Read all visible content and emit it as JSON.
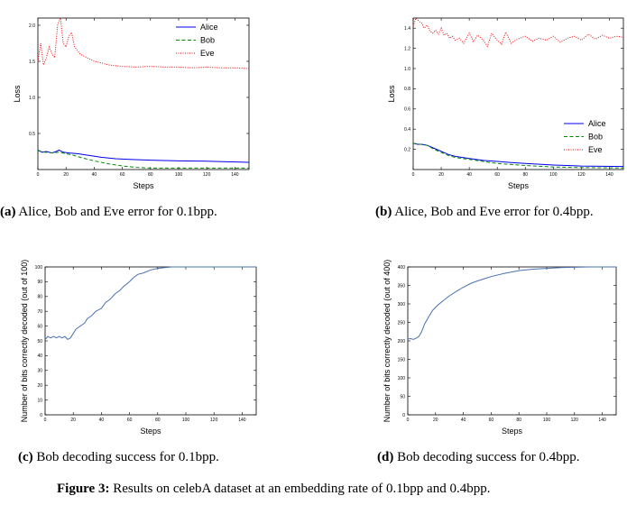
{
  "captions": {
    "a": {
      "tag": "(a)",
      "text": " Alice, Bob and Eve error for 0.1bpp."
    },
    "b": {
      "tag": "(b)",
      "text": " Alice, Bob and Eve error for 0.4bpp."
    },
    "c": {
      "tag": "(c)",
      "text": " Bob decoding success for 0.1bpp."
    },
    "d": {
      "tag": "(d)",
      "text": " Bob decoding success for 0.4bpp."
    },
    "figure": {
      "tag": "Figure 3:",
      "text": " Results on celebA dataset at an embedding rate of 0.1bpp and 0.4bpp."
    }
  },
  "chart_data": [
    {
      "id": "a",
      "type": "line",
      "xlabel": "Steps",
      "ylabel": "Loss",
      "xlim": [
        0,
        150
      ],
      "ylim": [
        0,
        2.1
      ],
      "xticks": [
        "0",
        "20",
        "40",
        "60",
        "80",
        "100",
        "120",
        "140"
      ],
      "yticks": [
        "0.5",
        "1.0",
        "1.5",
        "2.0"
      ],
      "legend_position": "top-right",
      "series": [
        {
          "name": "Alice",
          "color": "#0000ee",
          "style": "solid",
          "x": [
            0,
            3,
            6,
            10,
            13,
            15,
            18,
            22,
            28,
            35,
            45,
            55,
            65,
            80,
            100,
            120,
            150
          ],
          "y": [
            0.27,
            0.24,
            0.25,
            0.23,
            0.25,
            0.27,
            0.24,
            0.23,
            0.22,
            0.2,
            0.17,
            0.15,
            0.14,
            0.13,
            0.12,
            0.115,
            0.1
          ]
        },
        {
          "name": "Bob",
          "color": "#008800",
          "style": "dashed",
          "x": [
            0,
            5,
            10,
            15,
            20,
            25,
            30,
            40,
            50,
            60,
            70,
            80,
            100,
            150
          ],
          "y": [
            0.26,
            0.24,
            0.23,
            0.24,
            0.22,
            0.2,
            0.17,
            0.12,
            0.08,
            0.05,
            0.03,
            0.02,
            0.02,
            0.02
          ]
        },
        {
          "name": "Eve",
          "color": "#ee0000",
          "style": "dotted",
          "x": [
            0,
            2,
            4,
            6,
            8,
            10,
            12,
            14,
            16,
            18,
            20,
            22,
            24,
            26,
            28,
            30,
            35,
            40,
            45,
            50,
            55,
            60,
            70,
            80,
            90,
            100,
            110,
            120,
            130,
            140,
            150
          ],
          "y": [
            1.5,
            1.75,
            1.45,
            1.55,
            1.7,
            1.6,
            1.55,
            2.0,
            2.1,
            1.75,
            1.7,
            1.85,
            1.9,
            1.7,
            1.65,
            1.6,
            1.55,
            1.5,
            1.48,
            1.45,
            1.44,
            1.43,
            1.42,
            1.43,
            1.42,
            1.42,
            1.41,
            1.42,
            1.41,
            1.41,
            1.4
          ]
        }
      ]
    },
    {
      "id": "b",
      "type": "line",
      "xlabel": "Steps",
      "ylabel": "Loss",
      "xlim": [
        0,
        150
      ],
      "ylim": [
        0,
        1.5
      ],
      "xticks": [
        "0",
        "20",
        "40",
        "60",
        "80",
        "100",
        "120",
        "140"
      ],
      "yticks": [
        "0.2",
        "0.4",
        "0.6",
        "0.8",
        "1.0",
        "1.2",
        "1.4"
      ],
      "legend_position": "bottom-right",
      "series": [
        {
          "name": "Alice",
          "color": "#0000ee",
          "style": "solid",
          "x": [
            0,
            3,
            6,
            10,
            15,
            20,
            25,
            30,
            40,
            50,
            60,
            70,
            80,
            100,
            120,
            150
          ],
          "y": [
            0.26,
            0.25,
            0.25,
            0.24,
            0.21,
            0.18,
            0.15,
            0.13,
            0.11,
            0.09,
            0.08,
            0.07,
            0.06,
            0.045,
            0.035,
            0.03
          ]
        },
        {
          "name": "Bob",
          "color": "#008800",
          "style": "dashed",
          "x": [
            0,
            5,
            10,
            15,
            20,
            25,
            30,
            40,
            50,
            60,
            70,
            80,
            100,
            120,
            150
          ],
          "y": [
            0.26,
            0.25,
            0.24,
            0.2,
            0.17,
            0.14,
            0.12,
            0.1,
            0.08,
            0.06,
            0.05,
            0.04,
            0.025,
            0.02,
            0.015
          ]
        },
        {
          "name": "Eve",
          "color": "#ee0000",
          "style": "dotted",
          "x": [
            0,
            2,
            4,
            6,
            8,
            10,
            12,
            14,
            16,
            18,
            20,
            22,
            24,
            26,
            28,
            30,
            33,
            36,
            40,
            43,
            46,
            50,
            53,
            56,
            60,
            63,
            66,
            70,
            73,
            76,
            80,
            85,
            90,
            95,
            100,
            105,
            110,
            115,
            120,
            125,
            130,
            135,
            140,
            145,
            150
          ],
          "y": [
            1.42,
            1.5,
            1.47,
            1.45,
            1.4,
            1.43,
            1.37,
            1.35,
            1.38,
            1.34,
            1.4,
            1.33,
            1.35,
            1.3,
            1.32,
            1.28,
            1.3,
            1.25,
            1.35,
            1.27,
            1.33,
            1.28,
            1.22,
            1.35,
            1.28,
            1.24,
            1.36,
            1.25,
            1.28,
            1.3,
            1.32,
            1.27,
            1.3,
            1.28,
            1.32,
            1.26,
            1.3,
            1.32,
            1.28,
            1.34,
            1.29,
            1.33,
            1.3,
            1.32,
            1.31
          ]
        }
      ]
    },
    {
      "id": "c",
      "type": "line",
      "xlabel": "Steps",
      "ylabel": "Number of bits correctly decoded (out of 100)",
      "xlim": [
        0,
        150
      ],
      "ylim": [
        0,
        100
      ],
      "xticks": [
        "0",
        "20",
        "40",
        "60",
        "80",
        "100",
        "120",
        "140"
      ],
      "yticks": [
        "0",
        "10",
        "20",
        "30",
        "40",
        "50",
        "60",
        "70",
        "80",
        "90",
        "100"
      ],
      "series": [
        {
          "name": "",
          "color": "#4a72b0",
          "style": "solid",
          "x": [
            0,
            2,
            4,
            6,
            8,
            10,
            12,
            14,
            16,
            18,
            20,
            22,
            25,
            28,
            30,
            33,
            36,
            40,
            43,
            46,
            50,
            53,
            56,
            60,
            63,
            66,
            70,
            75,
            80,
            85,
            90,
            100,
            120,
            150
          ],
          "y": [
            51,
            53,
            52,
            53,
            52,
            53,
            52,
            53,
            51,
            52,
            55,
            58,
            60,
            62,
            65,
            67,
            70,
            72,
            76,
            78,
            82,
            84,
            87,
            90,
            93,
            95,
            96,
            98,
            99,
            99.5,
            100,
            100,
            100,
            100
          ]
        }
      ]
    },
    {
      "id": "d",
      "type": "line",
      "xlabel": "Steps",
      "ylabel": "Number of bits correctly decoded (out of 400)",
      "xlim": [
        0,
        150
      ],
      "ylim": [
        0,
        400
      ],
      "xticks": [
        "0",
        "20",
        "40",
        "60",
        "80",
        "100",
        "120",
        "140"
      ],
      "yticks": [
        "0",
        "50",
        "100",
        "150",
        "200",
        "250",
        "300",
        "350",
        "400"
      ],
      "series": [
        {
          "name": "",
          "color": "#4a72b0",
          "style": "solid",
          "x": [
            0,
            2,
            4,
            6,
            8,
            10,
            12,
            15,
            18,
            22,
            26,
            30,
            35,
            40,
            45,
            50,
            55,
            60,
            70,
            80,
            90,
            100,
            110,
            120,
            130,
            140,
            150
          ],
          "y": [
            205,
            206,
            204,
            207,
            212,
            225,
            245,
            265,
            283,
            298,
            310,
            322,
            334,
            345,
            355,
            362,
            368,
            374,
            383,
            390,
            394,
            396,
            398,
            399,
            400,
            400,
            400
          ]
        }
      ]
    }
  ]
}
